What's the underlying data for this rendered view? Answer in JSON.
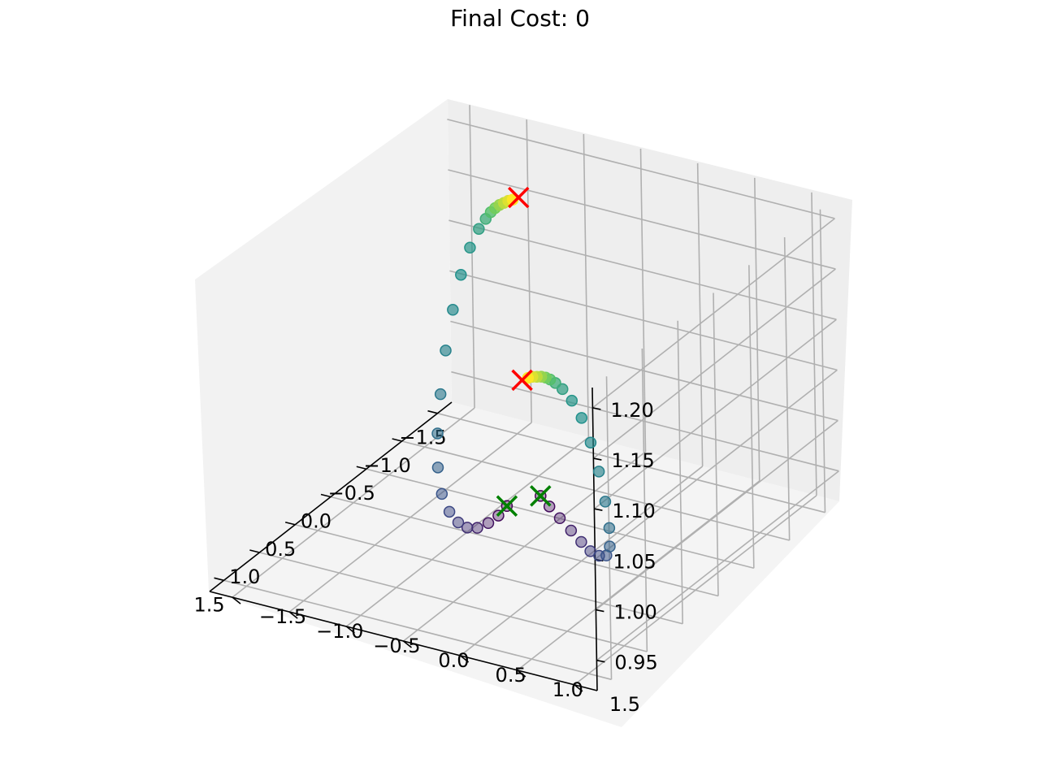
{
  "chart_data": {
    "type": "scatter",
    "title": "Final Cost: 0",
    "dimensions": "3d",
    "xlabel": "",
    "ylabel": "",
    "zlabel": "",
    "xlim": [
      -1.7,
      1.7
    ],
    "ylim": [
      -1.7,
      1.7
    ],
    "zlim": [
      0.92,
      1.22
    ],
    "grid": true,
    "x_ticks": [
      "−1.5",
      "−1.0",
      "−0.5",
      "0.0",
      "0.5",
      "1.0",
      "1.5"
    ],
    "y_ticks": [
      "−1.5",
      "−1.0",
      "−0.5",
      "0.0",
      "0.5",
      "1.0",
      "1.5"
    ],
    "z_ticks": [
      "0.95",
      "1.00",
      "1.05",
      "1.10",
      "1.15",
      "1.20"
    ],
    "x_tick_values": [
      -1.5,
      -1.0,
      -0.5,
      0.0,
      0.5,
      1.0,
      1.5
    ],
    "y_tick_values": [
      -1.5,
      -1.0,
      -0.5,
      0.0,
      0.5,
      1.0,
      1.5
    ],
    "z_tick_values": [
      0.95,
      1.0,
      1.05,
      1.1,
      1.15,
      1.2
    ],
    "colormap": [
      "#440154",
      "#3b528b",
      "#21918c",
      "#5ec962",
      "#fde725"
    ],
    "series": [
      {
        "points": [
          {
            "x": -1.52,
            "y": -1.02,
            "z": 1.15,
            "c": 1.0
          },
          {
            "x": -1.49,
            "y": -1.04,
            "z": 1.15,
            "c": 0.95
          },
          {
            "x": -1.46,
            "y": -1.06,
            "z": 1.149,
            "c": 0.9
          },
          {
            "x": -1.43,
            "y": -1.08,
            "z": 1.148,
            "c": 0.84
          },
          {
            "x": -1.4,
            "y": -1.1,
            "z": 1.146,
            "c": 0.78
          },
          {
            "x": -1.37,
            "y": -1.12,
            "z": 1.143,
            "c": 0.7
          },
          {
            "x": -1.33,
            "y": -1.14,
            "z": 1.138,
            "c": 0.62
          },
          {
            "x": -1.28,
            "y": -1.17,
            "z": 1.13,
            "c": 0.56
          },
          {
            "x": -1.2,
            "y": -1.2,
            "z": 1.115,
            "c": 0.52
          },
          {
            "x": -1.1,
            "y": -1.22,
            "z": 1.093,
            "c": 0.5
          },
          {
            "x": -0.98,
            "y": -1.22,
            "z": 1.065,
            "c": 0.47
          },
          {
            "x": -0.84,
            "y": -1.2,
            "z": 1.033,
            "c": 0.44
          },
          {
            "x": -0.68,
            "y": -1.15,
            "z": 1.0,
            "c": 0.4
          },
          {
            "x": -0.52,
            "y": -1.08,
            "z": 0.972,
            "c": 0.36
          },
          {
            "x": -0.36,
            "y": -0.98,
            "z": 0.95,
            "c": 0.31
          },
          {
            "x": -0.22,
            "y": -0.86,
            "z": 0.935,
            "c": 0.26
          },
          {
            "x": -0.1,
            "y": -0.72,
            "z": 0.928,
            "c": 0.22
          },
          {
            "x": 0.0,
            "y": -0.58,
            "z": 0.927,
            "c": 0.18
          },
          {
            "x": 0.08,
            "y": -0.45,
            "z": 0.93,
            "c": 0.14
          },
          {
            "x": 0.13,
            "y": -0.33,
            "z": 0.936,
            "c": 0.1
          },
          {
            "x": 0.15,
            "y": -0.22,
            "z": 0.945,
            "c": 0.06
          },
          {
            "x": 0.15,
            "y": -0.13,
            "z": 0.955,
            "c": 0.03
          },
          {
            "x": 0.14,
            "y": -0.06,
            "z": 0.966,
            "c": 0.0
          },
          {
            "x": 1.52,
            "y": 1.02,
            "z": 1.2,
            "c": 1.0
          },
          {
            "x": 1.49,
            "y": 1.04,
            "z": 1.2,
            "c": 0.95
          },
          {
            "x": 1.46,
            "y": 1.06,
            "z": 1.199,
            "c": 0.9
          },
          {
            "x": 1.43,
            "y": 1.08,
            "z": 1.198,
            "c": 0.84
          },
          {
            "x": 1.4,
            "y": 1.1,
            "z": 1.196,
            "c": 0.78
          },
          {
            "x": 1.37,
            "y": 1.12,
            "z": 1.193,
            "c": 0.7
          },
          {
            "x": 1.33,
            "y": 1.14,
            "z": 1.188,
            "c": 0.62
          },
          {
            "x": 1.28,
            "y": 1.17,
            "z": 1.18,
            "c": 0.56
          },
          {
            "x": 1.2,
            "y": 1.2,
            "z": 1.165,
            "c": 0.52
          },
          {
            "x": 1.1,
            "y": 1.22,
            "z": 1.143,
            "c": 0.5
          },
          {
            "x": 0.98,
            "y": 1.22,
            "z": 1.112,
            "c": 0.47
          },
          {
            "x": 0.84,
            "y": 1.2,
            "z": 1.075,
            "c": 0.44
          },
          {
            "x": 0.68,
            "y": 1.15,
            "z": 1.035,
            "c": 0.4
          },
          {
            "x": 0.52,
            "y": 1.08,
            "z": 0.998,
            "c": 0.36
          },
          {
            "x": 0.36,
            "y": 0.98,
            "z": 0.968,
            "c": 0.31
          },
          {
            "x": 0.22,
            "y": 0.86,
            "z": 0.948,
            "c": 0.26
          },
          {
            "x": 0.1,
            "y": 0.72,
            "z": 0.937,
            "c": 0.22
          },
          {
            "x": 0.0,
            "y": 0.58,
            "z": 0.932,
            "c": 0.18
          },
          {
            "x": -0.08,
            "y": 0.45,
            "z": 0.933,
            "c": 0.14
          },
          {
            "x": -0.13,
            "y": 0.33,
            "z": 0.938,
            "c": 0.1
          },
          {
            "x": -0.15,
            "y": 0.22,
            "z": 0.946,
            "c": 0.06
          },
          {
            "x": -0.15,
            "y": 0.13,
            "z": 0.955,
            "c": 0.03
          },
          {
            "x": -0.14,
            "y": 0.06,
            "z": 0.964,
            "c": 0.0
          }
        ]
      }
    ],
    "markers": [
      {
        "x": -1.57,
        "y": -1.0,
        "z": 1.15,
        "marker": "x",
        "color": "#ff0000"
      },
      {
        "x": 1.57,
        "y": 1.0,
        "z": 1.2,
        "marker": "x",
        "color": "#ff0000"
      },
      {
        "x": 0.14,
        "y": -0.06,
        "z": 0.966,
        "marker": "x",
        "color": "#008000"
      },
      {
        "x": -0.14,
        "y": 0.06,
        "z": 0.964,
        "marker": "x",
        "color": "#008000"
      }
    ]
  }
}
